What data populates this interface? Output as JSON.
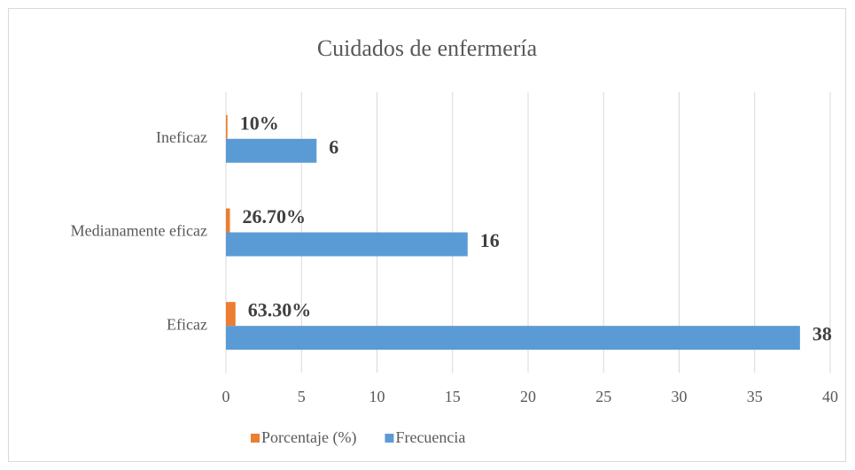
{
  "chart_data": {
    "type": "bar",
    "orientation": "horizontal",
    "title": "Cuidados de enfermería",
    "categories": [
      "Eficaz",
      "Medianamente eficaz",
      "Ineficaz"
    ],
    "series": [
      {
        "name": "Porcentaje (%)",
        "color": "#ed7d31",
        "values": [
          0.633,
          0.267,
          0.1
        ],
        "value_labels": [
          "63.30%",
          "26.70%",
          "10%"
        ]
      },
      {
        "name": "Frecuencia",
        "color": "#5b9bd5",
        "values": [
          38,
          16,
          6
        ]
      }
    ],
    "xlim": [
      0,
      40
    ],
    "xticks": [
      0,
      5,
      10,
      15,
      20,
      25,
      30,
      35,
      40
    ],
    "grid": true,
    "legend": "bottom"
  }
}
